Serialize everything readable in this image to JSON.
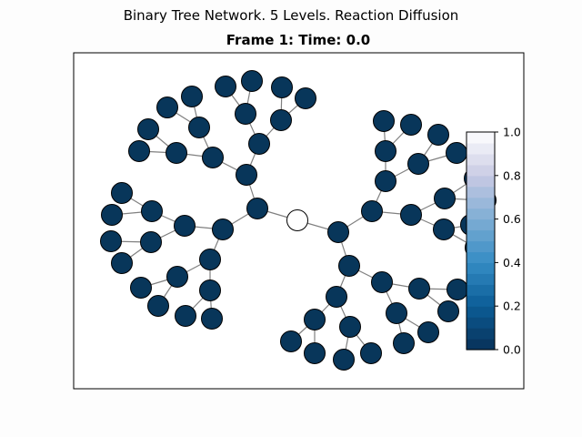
{
  "figure": {
    "suptitle": "Binary Tree Network. 5 Levels. Reaction Diffusion",
    "title": "Frame 1: Time: 0.0"
  },
  "chart_data": {
    "type": "network",
    "title": "Frame 1: Time: 0.0",
    "suptitle": "Binary Tree Network. 5 Levels. Reaction Diffusion",
    "levels": 5,
    "frame": 1,
    "time": 0.0,
    "node_count": 63,
    "node_values": {
      "root": 1.0,
      "all_other_nodes": 0.0
    },
    "colorbar": {
      "min": 0.0,
      "max": 1.0,
      "ticks": [
        "0.0",
        "0.2",
        "0.4",
        "0.6",
        "0.8",
        "1.0"
      ],
      "colormap": "reversed-blue (dark navy at 0.0 to white at 1.0)",
      "bands": 20,
      "placement": "right, overlapping plot"
    },
    "colors": {
      "low_node": "#08365a",
      "high_node": "#ffffff",
      "edge": "#808080",
      "node_outline": "#000000"
    },
    "frame_box": true,
    "axes_ticks": false
  }
}
